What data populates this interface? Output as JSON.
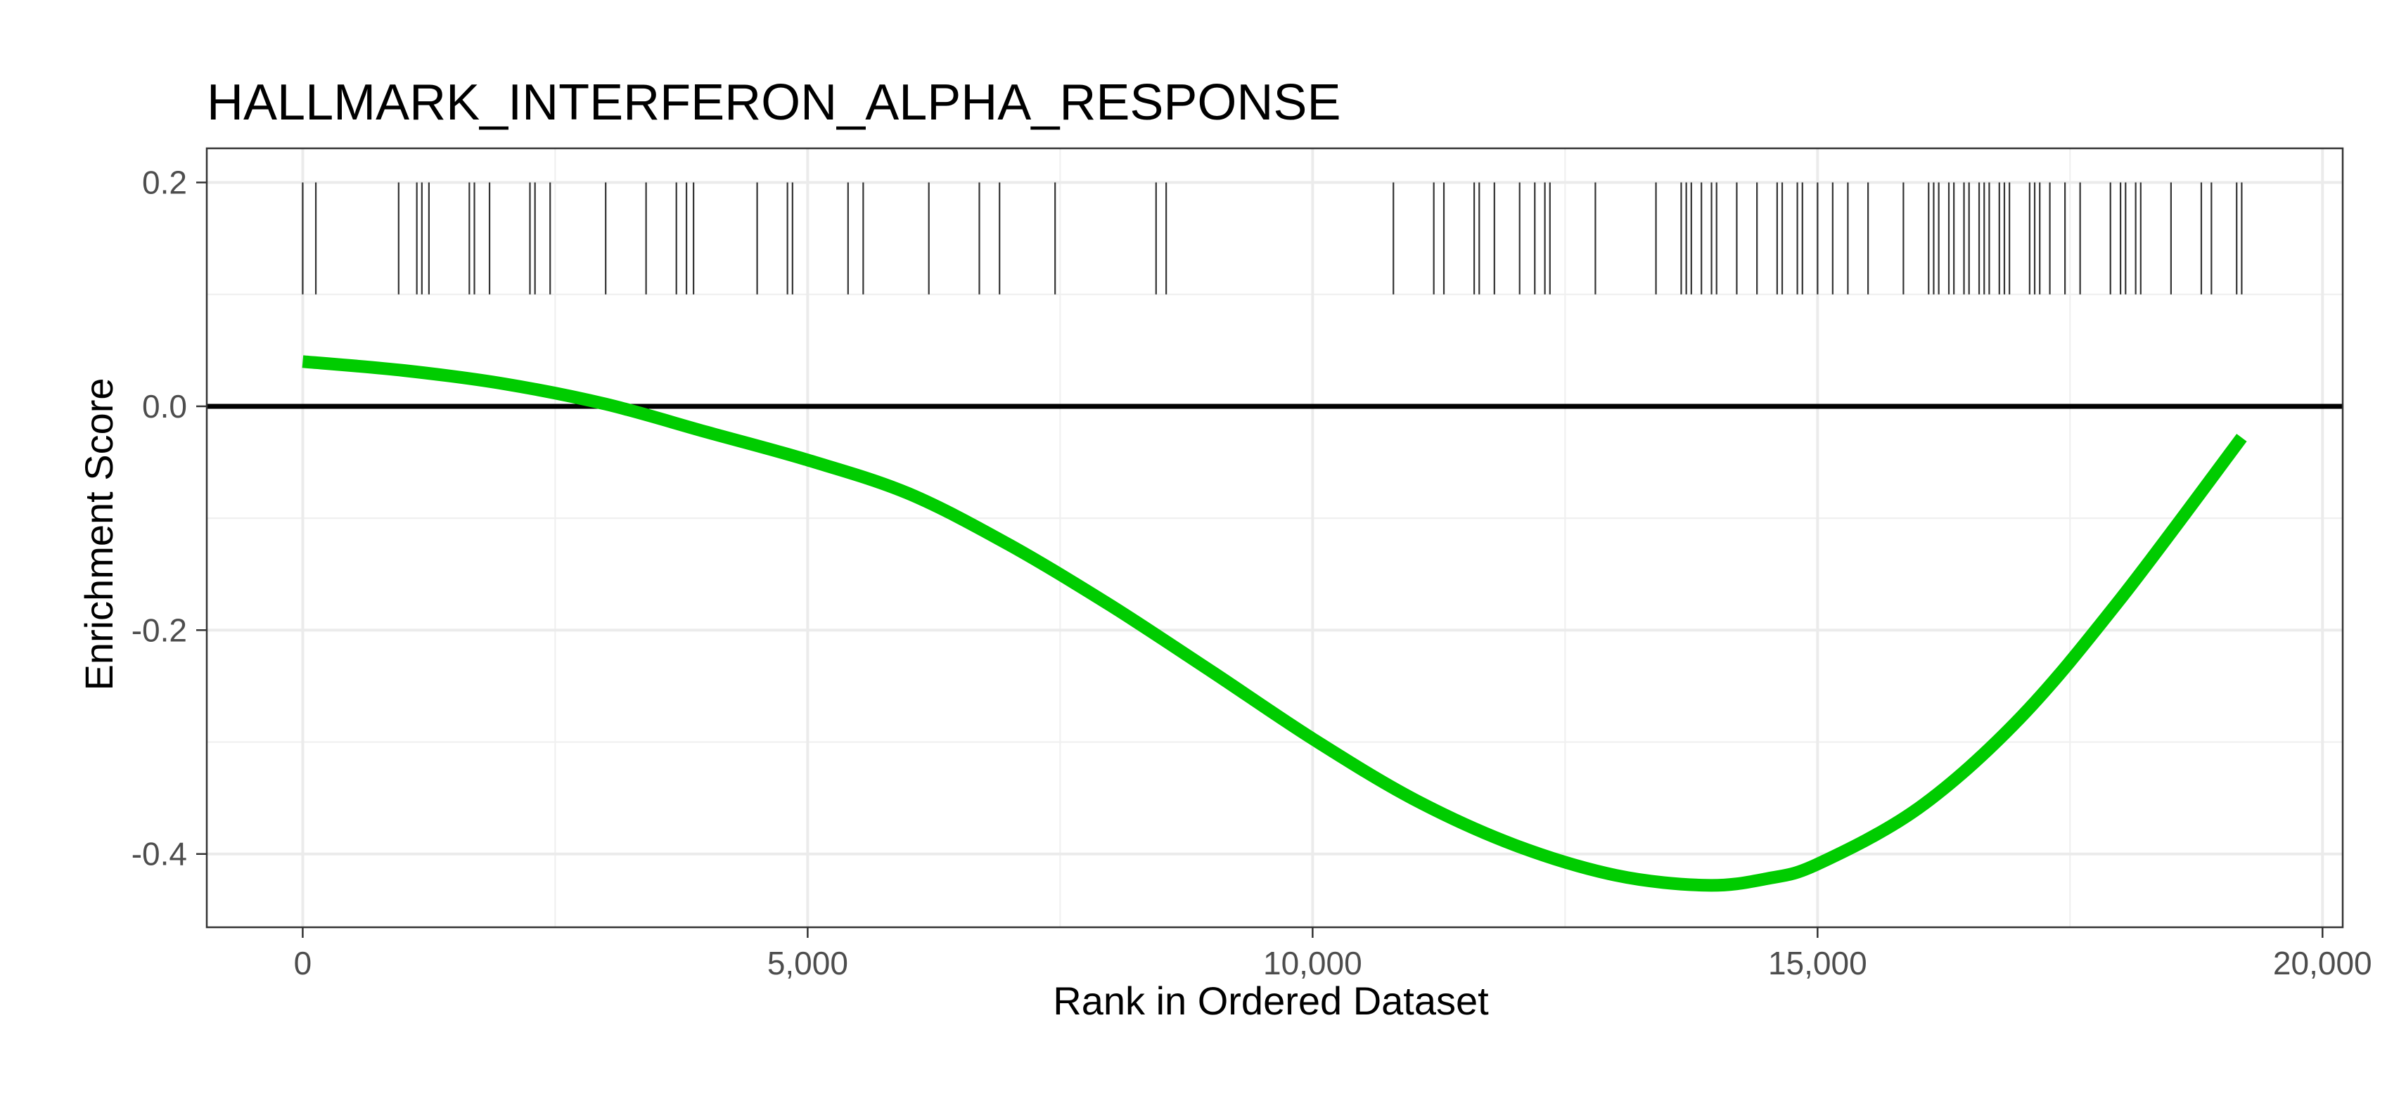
{
  "chart_data": {
    "type": "line",
    "title": "HALLMARK_INTERFERON_ALPHA_RESPONSE",
    "xlabel": "Rank in Ordered Dataset",
    "ylabel": "Enrichment Score",
    "xlim": [
      -950,
      20200
    ],
    "ylim": [
      -0.4655,
      0.2305
    ],
    "x_ticks": [
      0,
      5000,
      10000,
      15000,
      20000
    ],
    "x_tick_labels": [
      "0",
      "5,000",
      "10,000",
      "15,000",
      "20,000"
    ],
    "y_ticks": [
      -0.4,
      -0.2,
      0.0,
      0.2
    ],
    "y_tick_labels": [
      "-0.4",
      "-0.2",
      "0.0",
      "0.2"
    ],
    "grid": true,
    "zero_line": 0,
    "series": [
      {
        "color": "#00cc00",
        "x": [
          0,
          1000,
          2000,
          3000,
          4000,
          5000,
          6000,
          7000,
          8000,
          9000,
          10000,
          11000,
          12000,
          13000,
          13900,
          14500,
          15000,
          16000,
          17000,
          18000,
          19200
        ],
        "values": [
          0.04,
          0.032,
          0.02,
          0.002,
          -0.023,
          -0.048,
          -0.078,
          -0.124,
          -0.178,
          -0.237,
          -0.297,
          -0.351,
          -0.392,
          -0.419,
          -0.428,
          -0.422,
          -0.409,
          -0.359,
          -0.279,
          -0.172,
          -0.028
        ]
      }
    ],
    "hit_ranks": [
      0,
      130,
      950,
      1130,
      1180,
      1250,
      1650,
      1700,
      1850,
      2250,
      2300,
      2450,
      3000,
      3400,
      3700,
      3800,
      3870,
      4500,
      4800,
      4850,
      5400,
      5550,
      6200,
      6700,
      6900,
      7450,
      8450,
      8550,
      10800,
      11200,
      11300,
      11600,
      11650,
      11800,
      12050,
      12200,
      12300,
      12350,
      12800,
      13400,
      13650,
      13700,
      13750,
      13850,
      13950,
      14000,
      14200,
      14400,
      14600,
      14650,
      14800,
      14850,
      15000,
      15150,
      15300,
      15500,
      15850,
      16100,
      16150,
      16200,
      16300,
      16350,
      16450,
      16500,
      16600,
      16650,
      16700,
      16800,
      16850,
      16900,
      17100,
      17150,
      17200,
      17300,
      17450,
      17600,
      17900,
      18000,
      18050,
      18150,
      18200,
      18500,
      18800,
      18900,
      19150,
      19200
    ]
  }
}
